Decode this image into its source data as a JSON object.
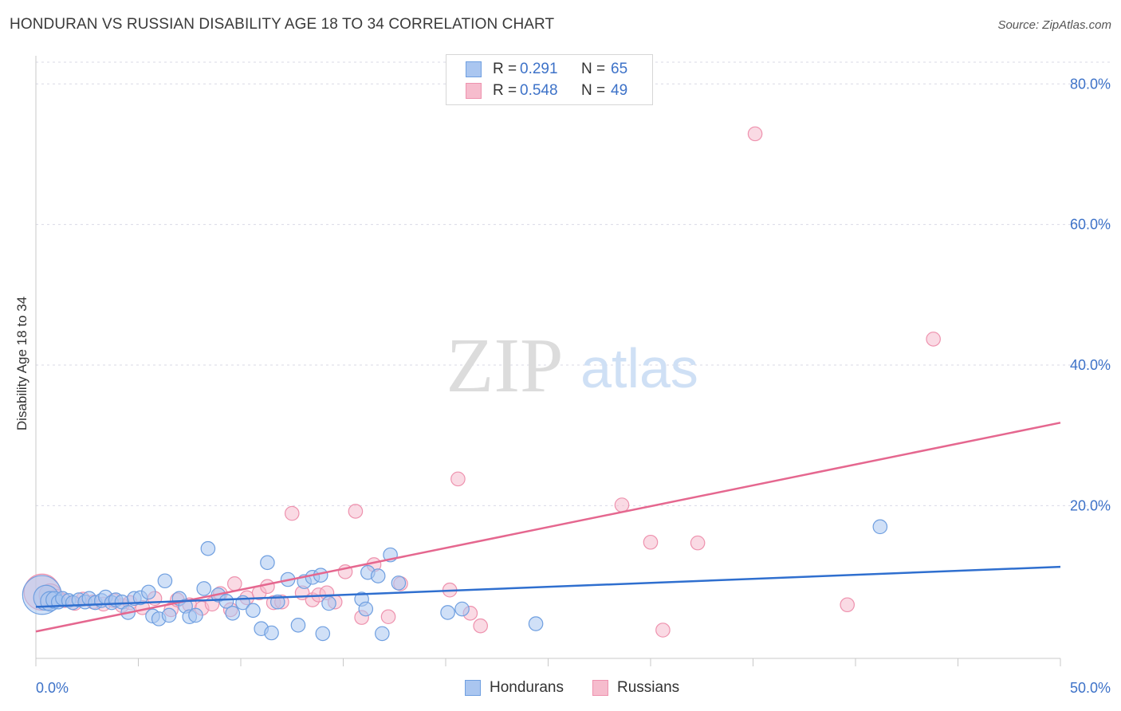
{
  "title": "HONDURAN VS RUSSIAN DISABILITY AGE 18 TO 34 CORRELATION CHART",
  "source": "Source: ZipAtlas.com",
  "watermark": {
    "zip": "ZIP",
    "atlas": "atlas"
  },
  "colors": {
    "blue_fill": "#aac6f0",
    "blue_stroke": "#6f9fe0",
    "blue_line": "#2f6fcf",
    "pink_fill": "#f6bccd",
    "pink_stroke": "#ee92ae",
    "pink_line": "#e5678f",
    "tick_label": "#3d72c8",
    "grid": "#d9d9e6"
  },
  "legend_top": [
    {
      "r_label": "R =",
      "r_value": "0.291",
      "n_label": "N =",
      "n_value": "65"
    },
    {
      "r_label": "R =",
      "r_value": "0.548",
      "n_label": "N =",
      "n_value": "49"
    }
  ],
  "legend_bottom": [
    {
      "label": "Hondurans"
    },
    {
      "label": "Russians"
    }
  ],
  "chart_data": {
    "type": "scatter",
    "xlabel": "",
    "ylabel": "Disability Age 18 to 34",
    "xlim": [
      0,
      50
    ],
    "ylim": [
      -1.5,
      84
    ],
    "x_tick_labels": [
      "0.0%",
      "50.0%"
    ],
    "y_ticks": [
      20,
      40,
      60,
      80
    ],
    "y_tick_labels": [
      "20.0%",
      "40.0%",
      "60.0%",
      "80.0%"
    ],
    "grid": true,
    "legend_position": "top-center",
    "series": [
      {
        "name": "Hondurans",
        "r": 0.291,
        "n": 65,
        "trend": {
          "x": [
            0,
            50
          ],
          "y": [
            5.6,
            11.3
          ]
        },
        "points": [
          [
            0.3,
            7.3,
            28
          ],
          [
            0.5,
            6.9,
            18
          ],
          [
            0.7,
            6.4,
            14
          ],
          [
            0.9,
            6.6,
            12
          ],
          [
            1.1,
            6.3,
            10
          ],
          [
            1.3,
            6.8,
            10
          ],
          [
            1.6,
            6.5,
            10
          ],
          [
            1.8,
            6.2,
            10
          ],
          [
            2.1,
            6.6,
            10
          ],
          [
            2.4,
            6.3,
            10
          ],
          [
            2.6,
            6.8,
            10
          ],
          [
            2.9,
            6.2,
            10
          ],
          [
            3.2,
            6.5,
            10
          ],
          [
            3.4,
            7.0,
            10
          ],
          [
            3.7,
            6.2,
            10
          ],
          [
            3.9,
            6.6,
            10
          ],
          [
            4.2,
            6.3,
            10
          ],
          [
            4.5,
            4.8,
            10
          ],
          [
            4.8,
            6.8,
            10
          ],
          [
            5.1,
            6.9,
            10
          ],
          [
            5.5,
            7.7,
            10
          ],
          [
            5.7,
            4.3,
            10
          ],
          [
            6.0,
            3.9,
            10
          ],
          [
            6.3,
            9.3,
            10
          ],
          [
            6.5,
            4.4,
            10
          ],
          [
            7.0,
            6.8,
            10
          ],
          [
            7.3,
            5.7,
            10
          ],
          [
            7.5,
            4.2,
            10
          ],
          [
            7.8,
            4.4,
            10
          ],
          [
            8.2,
            8.2,
            10
          ],
          [
            8.4,
            13.9,
            10
          ],
          [
            8.9,
            7.3,
            10
          ],
          [
            9.3,
            6.4,
            10
          ],
          [
            9.6,
            4.7,
            10
          ],
          [
            10.1,
            6.2,
            10
          ],
          [
            10.6,
            5.1,
            10
          ],
          [
            11.0,
            2.5,
            10
          ],
          [
            11.3,
            11.9,
            10
          ],
          [
            11.5,
            1.9,
            10
          ],
          [
            11.8,
            6.3,
            10
          ],
          [
            12.3,
            9.5,
            10
          ],
          [
            12.8,
            3.0,
            10
          ],
          [
            13.1,
            9.2,
            10
          ],
          [
            13.5,
            9.8,
            10
          ],
          [
            13.9,
            10.1,
            10
          ],
          [
            14.0,
            1.8,
            10
          ],
          [
            14.3,
            6.1,
            10
          ],
          [
            15.9,
            6.7,
            10
          ],
          [
            16.1,
            5.3,
            10
          ],
          [
            16.2,
            10.5,
            10
          ],
          [
            16.7,
            10.0,
            10
          ],
          [
            16.9,
            1.8,
            10
          ],
          [
            17.3,
            13.0,
            10
          ],
          [
            17.7,
            9.0,
            10
          ],
          [
            20.1,
            4.8,
            10
          ],
          [
            20.8,
            5.3,
            10
          ],
          [
            24.4,
            3.2,
            10
          ],
          [
            41.2,
            17.0,
            10
          ]
        ]
      },
      {
        "name": "Russians",
        "r": 0.548,
        "n": 49,
        "trend": {
          "x": [
            0,
            50
          ],
          "y": [
            2.1,
            31.8
          ]
        },
        "points": [
          [
            0.3,
            7.7,
            26
          ],
          [
            0.7,
            7.3,
            16
          ],
          [
            1.0,
            6.9,
            12
          ],
          [
            1.4,
            6.5,
            10
          ],
          [
            1.9,
            6.1,
            10
          ],
          [
            2.3,
            6.7,
            10
          ],
          [
            2.8,
            6.3,
            10
          ],
          [
            3.3,
            6.0,
            10
          ],
          [
            3.8,
            6.5,
            10
          ],
          [
            4.2,
            5.8,
            10
          ],
          [
            4.6,
            6.2,
            10
          ],
          [
            5.2,
            5.5,
            10
          ],
          [
            5.8,
            6.8,
            10
          ],
          [
            6.6,
            5.2,
            10
          ],
          [
            6.9,
            6.6,
            10
          ],
          [
            7.5,
            5.9,
            10
          ],
          [
            8.1,
            5.4,
            10
          ],
          [
            8.6,
            6.0,
            10
          ],
          [
            9.0,
            7.5,
            10
          ],
          [
            9.5,
            5.2,
            10
          ],
          [
            9.7,
            8.9,
            10
          ],
          [
            10.3,
            6.9,
            10
          ],
          [
            10.9,
            7.6,
            10
          ],
          [
            11.3,
            8.5,
            10
          ],
          [
            11.6,
            6.2,
            10
          ],
          [
            12.0,
            6.3,
            10
          ],
          [
            12.5,
            18.9,
            10
          ],
          [
            13.0,
            7.6,
            10
          ],
          [
            13.5,
            6.6,
            10
          ],
          [
            13.8,
            7.3,
            10
          ],
          [
            14.2,
            7.6,
            10
          ],
          [
            14.6,
            6.3,
            10
          ],
          [
            15.1,
            10.6,
            10
          ],
          [
            15.6,
            19.2,
            10
          ],
          [
            15.9,
            4.1,
            10
          ],
          [
            16.5,
            11.6,
            10
          ],
          [
            17.2,
            4.2,
            10
          ],
          [
            17.8,
            8.9,
            10
          ],
          [
            20.2,
            8.0,
            10
          ],
          [
            20.6,
            23.8,
            10
          ],
          [
            21.2,
            4.7,
            10
          ],
          [
            21.7,
            2.9,
            10
          ],
          [
            28.6,
            20.1,
            10
          ],
          [
            30.0,
            14.8,
            10
          ],
          [
            30.6,
            2.3,
            10
          ],
          [
            32.3,
            14.7,
            10
          ],
          [
            35.1,
            72.9,
            10
          ],
          [
            39.6,
            5.9,
            10
          ],
          [
            43.8,
            43.7,
            10
          ]
        ]
      }
    ]
  }
}
